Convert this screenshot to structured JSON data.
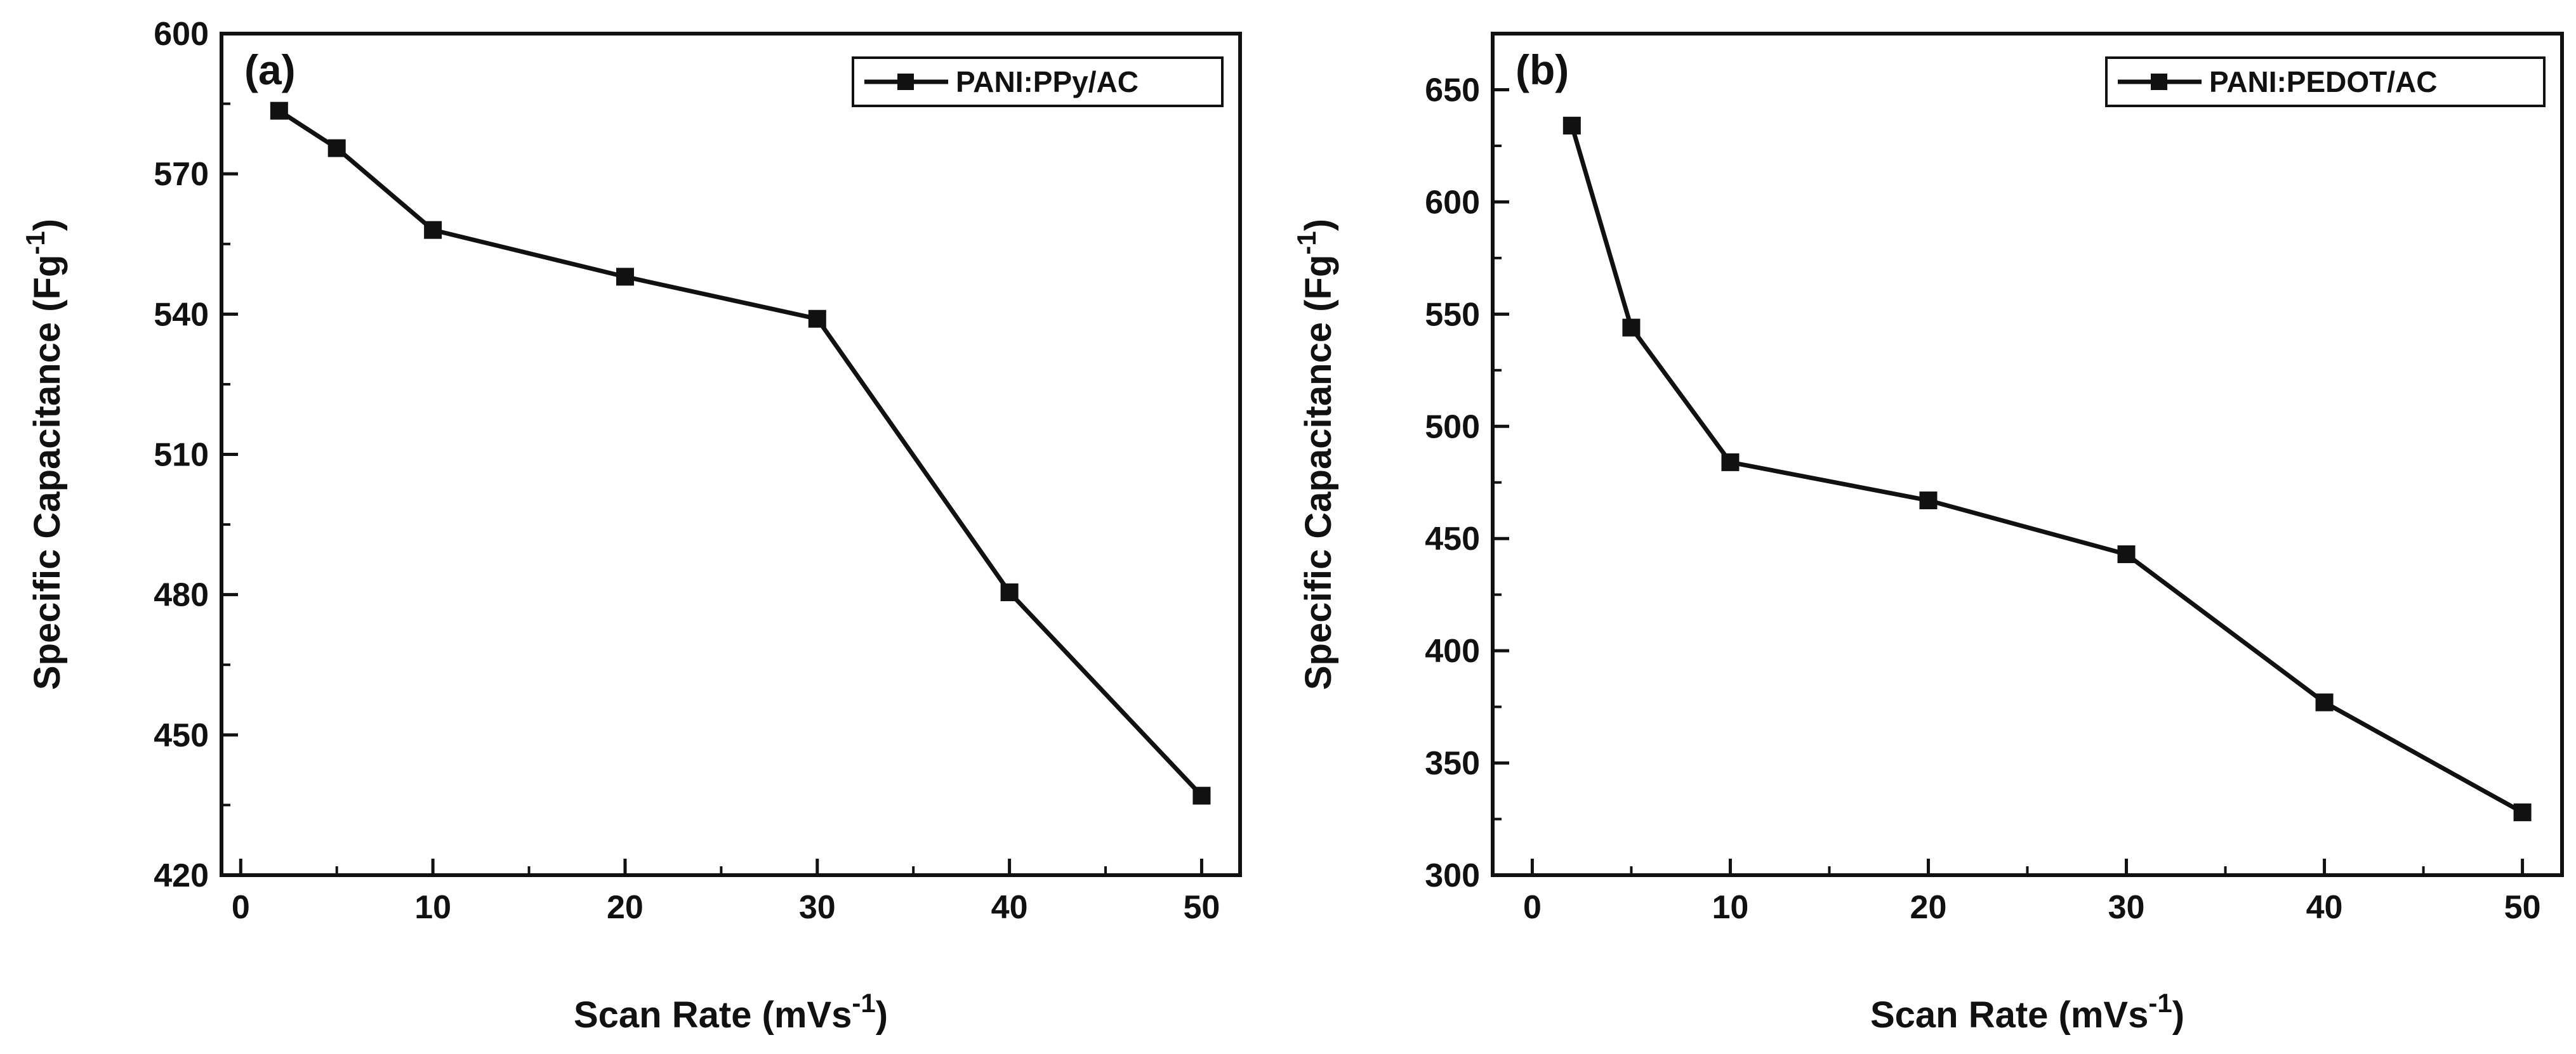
{
  "colors": {
    "line": "#111111",
    "background": "#ffffff"
  },
  "chart_data": [
    {
      "type": "line",
      "panel_label": "(a)",
      "xlabel": "Scan Rate",
      "xlabel_unit_base": "(mVs",
      "xlabel_unit_exp": "-1",
      "xlabel_unit_close": ")",
      "ylabel": "Specific Capacitance",
      "ylabel_unit_base": "(Fg",
      "ylabel_unit_exp": "-1",
      "ylabel_unit_close": ")",
      "xlim": [
        -1,
        52
      ],
      "ylim": [
        420,
        600
      ],
      "xticks": [
        0,
        10,
        20,
        30,
        40,
        50
      ],
      "yticks": [
        420,
        450,
        480,
        510,
        540,
        570,
        600
      ],
      "xtick_labels": [
        "0",
        "10",
        "20",
        "30",
        "40",
        "50"
      ],
      "ytick_labels": [
        "420",
        "450",
        "480",
        "510",
        "540",
        "570",
        "600"
      ],
      "legend_position": "top-right",
      "grid": false,
      "series": [
        {
          "name": "PANI:PPy/AC",
          "x": [
            2,
            5,
            10,
            20,
            30,
            40,
            50
          ],
          "y": [
            583.5,
            575.5,
            558,
            548,
            539,
            480.5,
            437
          ]
        }
      ]
    },
    {
      "type": "line",
      "panel_label": "(b)",
      "xlabel": "Scan Rate",
      "xlabel_unit_base": "(mVs",
      "xlabel_unit_exp": "-1",
      "xlabel_unit_close": ")",
      "ylabel": "Specific Capacitance",
      "ylabel_unit_base": "(Fg",
      "ylabel_unit_exp": "-1",
      "ylabel_unit_close": ")",
      "xlim": [
        -2,
        52
      ],
      "ylim": [
        300,
        675
      ],
      "xticks": [
        0,
        10,
        20,
        30,
        40,
        50
      ],
      "yticks": [
        300,
        350,
        400,
        450,
        500,
        550,
        600,
        650
      ],
      "xtick_labels": [
        "0",
        "10",
        "20",
        "30",
        "40",
        "50"
      ],
      "ytick_labels": [
        "300",
        "350",
        "400",
        "450",
        "500",
        "550",
        "600",
        "650"
      ],
      "legend_position": "top-right",
      "grid": false,
      "series": [
        {
          "name": "PANI:PEDOT/AC",
          "x": [
            2,
            5,
            10,
            20,
            30,
            40,
            50
          ],
          "y": [
            634,
            544,
            484,
            467,
            443,
            377,
            328
          ]
        }
      ]
    }
  ]
}
